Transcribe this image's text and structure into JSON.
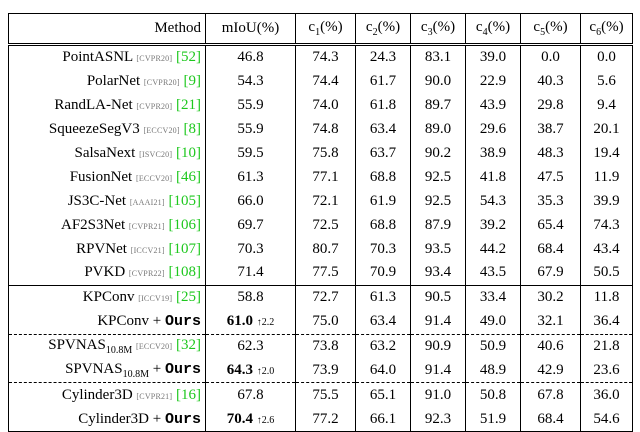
{
  "table": {
    "header": {
      "method": "Method",
      "miou": "mIoU(%)",
      "classes": [
        {
          "label": "c",
          "sub": "1",
          "unit": "(%)"
        },
        {
          "label": "c",
          "sub": "2",
          "unit": "(%)"
        },
        {
          "label": "c",
          "sub": "3",
          "unit": "(%)"
        },
        {
          "label": "c",
          "sub": "4",
          "unit": "(%)"
        },
        {
          "label": "c",
          "sub": "5",
          "unit": "(%)"
        },
        {
          "label": "c",
          "sub": "6",
          "unit": "(%)"
        }
      ]
    },
    "groups": [
      [
        {
          "method": "PointASNL",
          "venue": "[CVPR20]",
          "cite": "[52]",
          "miou": "46.8",
          "values": [
            "74.3",
            "24.3",
            "83.1",
            "39.0",
            "0.0",
            "0.0"
          ]
        },
        {
          "method": "PolarNet",
          "venue": "[CVPR20]",
          "cite": "[9]",
          "miou": "54.3",
          "values": [
            "74.4",
            "61.7",
            "90.0",
            "22.9",
            "40.3",
            "5.6"
          ]
        },
        {
          "method": "RandLA-Net",
          "venue": "[CVPR20]",
          "cite": "[21]",
          "miou": "55.9",
          "values": [
            "74.0",
            "61.8",
            "89.7",
            "43.9",
            "29.8",
            "9.4"
          ]
        },
        {
          "method": "SqueezeSegV3",
          "venue": "[ECCV20]",
          "cite": "[8]",
          "miou": "55.9",
          "values": [
            "74.8",
            "63.4",
            "89.0",
            "29.6",
            "38.7",
            "20.1"
          ]
        },
        {
          "method": "SalsaNext",
          "venue": "[ISVC20]",
          "cite": "[10]",
          "miou": "59.5",
          "values": [
            "75.8",
            "63.7",
            "90.2",
            "38.9",
            "48.3",
            "19.4"
          ]
        },
        {
          "method": "FusionNet",
          "venue": "[ECCV20]",
          "cite": "[46]",
          "miou": "61.3",
          "values": [
            "77.1",
            "68.8",
            "92.5",
            "41.8",
            "47.5",
            "11.9"
          ]
        },
        {
          "method": "JS3C-Net",
          "venue": "[AAAI21]",
          "cite": "[105]",
          "miou": "66.0",
          "values": [
            "72.1",
            "61.9",
            "92.5",
            "54.3",
            "35.3",
            "39.9"
          ]
        },
        {
          "method": "AF2S3Net",
          "venue": "[CVPR21]",
          "cite": "[106]",
          "miou": "69.7",
          "values": [
            "72.5",
            "68.8",
            "87.9",
            "39.2",
            "65.4",
            "74.3"
          ]
        },
        {
          "method": "RPVNet",
          "venue": "[ICCV21]",
          "cite": "[107]",
          "miou": "70.3",
          "values": [
            "80.7",
            "70.3",
            "93.5",
            "44.2",
            "68.4",
            "43.4"
          ]
        },
        {
          "method": "PVKD",
          "venue": "[CVPR22]",
          "cite": "[108]",
          "miou": "71.4",
          "values": [
            "77.5",
            "70.9",
            "93.4",
            "43.5",
            "67.9",
            "50.5"
          ]
        }
      ],
      [
        {
          "method": "KPConv",
          "venue": "[ICCV19]",
          "cite": "[25]",
          "miou": "58.8",
          "values": [
            "72.7",
            "61.3",
            "90.5",
            "33.4",
            "30.2",
            "11.8"
          ]
        },
        {
          "method": "KPConv",
          "plus": "+",
          "ours": "Ours",
          "miou": "61.0",
          "delta": "↑2.2",
          "values": [
            "75.0",
            "63.4",
            "91.4",
            "49.0",
            "32.1",
            "36.4"
          ]
        }
      ],
      [
        {
          "method": "SPVNAS",
          "sub": "10.8M",
          "venue": "[ECCV20]",
          "cite": "[32]",
          "miou": "62.3",
          "values": [
            "73.8",
            "63.2",
            "90.9",
            "50.9",
            "40.6",
            "21.8"
          ]
        },
        {
          "method": "SPVNAS",
          "sub": "10.8M",
          "plus": "+",
          "ours": "Ours",
          "miou": "64.3",
          "delta": "↑2.0",
          "values": [
            "73.9",
            "64.0",
            "91.4",
            "48.9",
            "42.9",
            "23.6"
          ]
        }
      ],
      [
        {
          "method": "Cylinder3D",
          "venue": "[CVPR21]",
          "cite": "[16]",
          "miou": "67.8",
          "values": [
            "75.5",
            "65.1",
            "91.0",
            "50.8",
            "67.8",
            "36.0"
          ]
        },
        {
          "method": "Cylinder3D",
          "plus": "+",
          "ours": "Ours",
          "miou": "70.4",
          "delta": "↑2.6",
          "values": [
            "77.2",
            "66.1",
            "92.3",
            "51.9",
            "68.4",
            "54.6"
          ]
        }
      ]
    ]
  }
}
